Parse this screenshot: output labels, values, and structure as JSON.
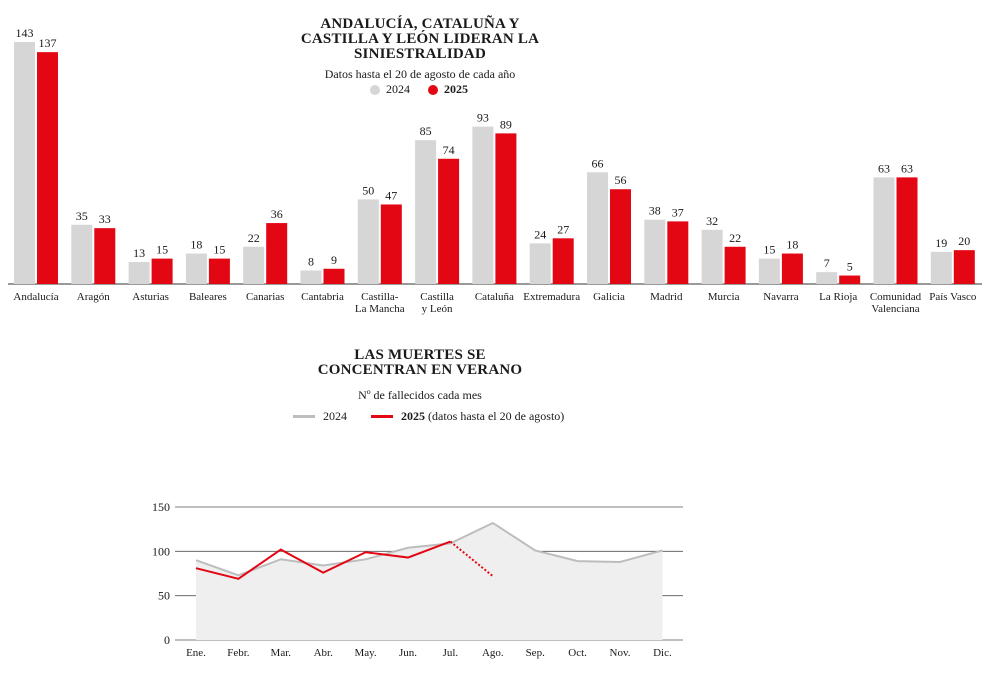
{
  "colors": {
    "y2024": "#d6d6d6",
    "y2025": "#e30613",
    "line2024": "#bdbdbd",
    "area": "#efefef",
    "axis": "#333333"
  },
  "chart_data": [
    {
      "type": "bar",
      "title": "ANDALUCÍA, CATALUÑA Y CASTILLA Y LEÓN LIDERAN LA SINIESTRALIDAD",
      "title_lines": [
        "ANDALUCÍA, CATALUÑA Y",
        "CASTILLA Y LEÓN LIDERAN LA",
        "SINIESTRALIDAD"
      ],
      "subtitle": "Datos hasta el 20 de agosto de cada año",
      "legend": [
        "2024",
        "2025"
      ],
      "categories": [
        [
          "Andalucía"
        ],
        [
          "Aragón"
        ],
        [
          "Asturias"
        ],
        [
          "Baleares"
        ],
        [
          "Canarias"
        ],
        [
          "Cantabria"
        ],
        [
          "Castilla-",
          "La Mancha"
        ],
        [
          "Castilla",
          "y León"
        ],
        [
          "Cataluña"
        ],
        [
          "Extremadura"
        ],
        [
          "Galicia"
        ],
        [
          "Madrid"
        ],
        [
          "Murcia"
        ],
        [
          "Navarra"
        ],
        [
          "La Rioja"
        ],
        [
          "Comunidad",
          "Valenciana"
        ],
        [
          "País Vasco"
        ]
      ],
      "series": [
        {
          "name": "2024",
          "values": [
            143,
            35,
            13,
            18,
            22,
            8,
            50,
            85,
            93,
            24,
            66,
            38,
            32,
            15,
            7,
            63,
            19
          ]
        },
        {
          "name": "2025",
          "values": [
            137,
            33,
            15,
            15,
            36,
            9,
            47,
            74,
            89,
            27,
            56,
            37,
            22,
            18,
            5,
            63,
            20
          ]
        }
      ]
    },
    {
      "type": "line",
      "title": "LAS MUERTES SE CONCENTRAN EN VERANO",
      "title_lines": [
        "LAS MUERTES SE",
        "CONCENTRAN EN VERANO"
      ],
      "subtitle": "Nº de fallecidos cada mes",
      "legend": [
        {
          "name": "2024",
          "note": ""
        },
        {
          "name": "2025",
          "note": " (datos hasta el 20 de agosto)"
        }
      ],
      "x": [
        "Ene.",
        "Febr.",
        "Mar.",
        "Abr.",
        "May.",
        "Jun.",
        "Jul.",
        "Ago.",
        "Sep.",
        "Oct.",
        "Nov.",
        "Dic."
      ],
      "series": [
        {
          "name": "2024",
          "values": [
            90,
            73,
            91,
            84,
            91,
            104,
            109,
            132,
            101,
            89,
            88,
            101
          ]
        },
        {
          "name": "2025",
          "values": [
            81,
            69,
            102,
            76,
            99,
            93,
            111,
            72,
            null,
            null,
            null,
            null
          ]
        }
      ],
      "yticks": [
        0,
        50,
        100,
        150
      ],
      "ylim": [
        0,
        150
      ]
    }
  ]
}
